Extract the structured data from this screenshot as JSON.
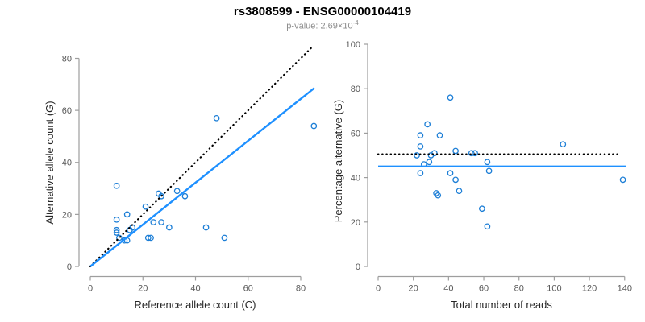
{
  "title": "rs3808599 - ENSG00000104419",
  "subtitle": {
    "text": "p-value: 2.69×10",
    "exponent": "-4"
  },
  "colors": {
    "points": "#1c7ed6",
    "fit_line": "#1e90ff",
    "reference_line": "#000000",
    "axis_line": "#9e9e9e",
    "tick_label": "#595959",
    "axis_title": "#262626"
  },
  "chart_data": [
    {
      "type": "scatter",
      "panel": "left",
      "xlabel": "Reference allele count (C)",
      "ylabel": "Alternative allele count (G)",
      "xlim": [
        0,
        85
      ],
      "ylim": [
        0,
        84
      ],
      "xticks": [
        0,
        20,
        40,
        60,
        80
      ],
      "yticks": [
        0,
        20,
        40,
        60,
        80
      ],
      "grid": false,
      "legend": "none",
      "points": [
        [
          10,
          31
        ],
        [
          26,
          28
        ],
        [
          27,
          27
        ],
        [
          33,
          29
        ],
        [
          36,
          27
        ],
        [
          21,
          23
        ],
        [
          14,
          20
        ],
        [
          10,
          18
        ],
        [
          24,
          17
        ],
        [
          27,
          17
        ],
        [
          30,
          15
        ],
        [
          44,
          15
        ],
        [
          10,
          14
        ],
        [
          10,
          13
        ],
        [
          16,
          15
        ],
        [
          15,
          14
        ],
        [
          11,
          11
        ],
        [
          13,
          10
        ],
        [
          14,
          10
        ],
        [
          22,
          11
        ],
        [
          23,
          11
        ],
        [
          48,
          57
        ],
        [
          85,
          54
        ],
        [
          51,
          11
        ]
      ],
      "lines": [
        {
          "name": "identity-line",
          "style": "dotted",
          "color_key": "reference_line",
          "x1": 0,
          "y1": 0,
          "x2": 84,
          "y2": 84
        },
        {
          "name": "fit-line",
          "style": "solid",
          "color_key": "fit_line",
          "x1": 0,
          "y1": 0,
          "x2": 85.2,
          "y2": 68.6
        }
      ]
    },
    {
      "type": "scatter",
      "panel": "right",
      "xlabel": "Total number of reads",
      "ylabel": "Percentage alternative (G)",
      "xlim": [
        0,
        142
      ],
      "ylim": [
        0,
        100
      ],
      "xticks": [
        0,
        20,
        40,
        60,
        80,
        100,
        120,
        140
      ],
      "yticks": [
        0,
        20,
        40,
        60,
        80,
        100
      ],
      "grid": false,
      "legend": "none",
      "points": [
        [
          41,
          76
        ],
        [
          28,
          64
        ],
        [
          24,
          59
        ],
        [
          35,
          59
        ],
        [
          24,
          54
        ],
        [
          105,
          55
        ],
        [
          44,
          52
        ],
        [
          22,
          50
        ],
        [
          30,
          50
        ],
        [
          32,
          51
        ],
        [
          53,
          51
        ],
        [
          55,
          51
        ],
        [
          29,
          47
        ],
        [
          26,
          46
        ],
        [
          62,
          47
        ],
        [
          24,
          42
        ],
        [
          41,
          42
        ],
        [
          63,
          43
        ],
        [
          139,
          39
        ],
        [
          44,
          39
        ],
        [
          33,
          33
        ],
        [
          34,
          32
        ],
        [
          46,
          34
        ],
        [
          59,
          26
        ],
        [
          62,
          18
        ]
      ],
      "lines": [
        {
          "name": "expected-percentage-line",
          "style": "dotted",
          "color_key": "reference_line",
          "x1": 0,
          "y1": 50.5,
          "x2": 137,
          "y2": 50.5
        },
        {
          "name": "mean-percentage-line",
          "style": "solid",
          "color_key": "fit_line",
          "x1": 0,
          "y1": 45,
          "x2": 141,
          "y2": 45
        }
      ]
    }
  ]
}
